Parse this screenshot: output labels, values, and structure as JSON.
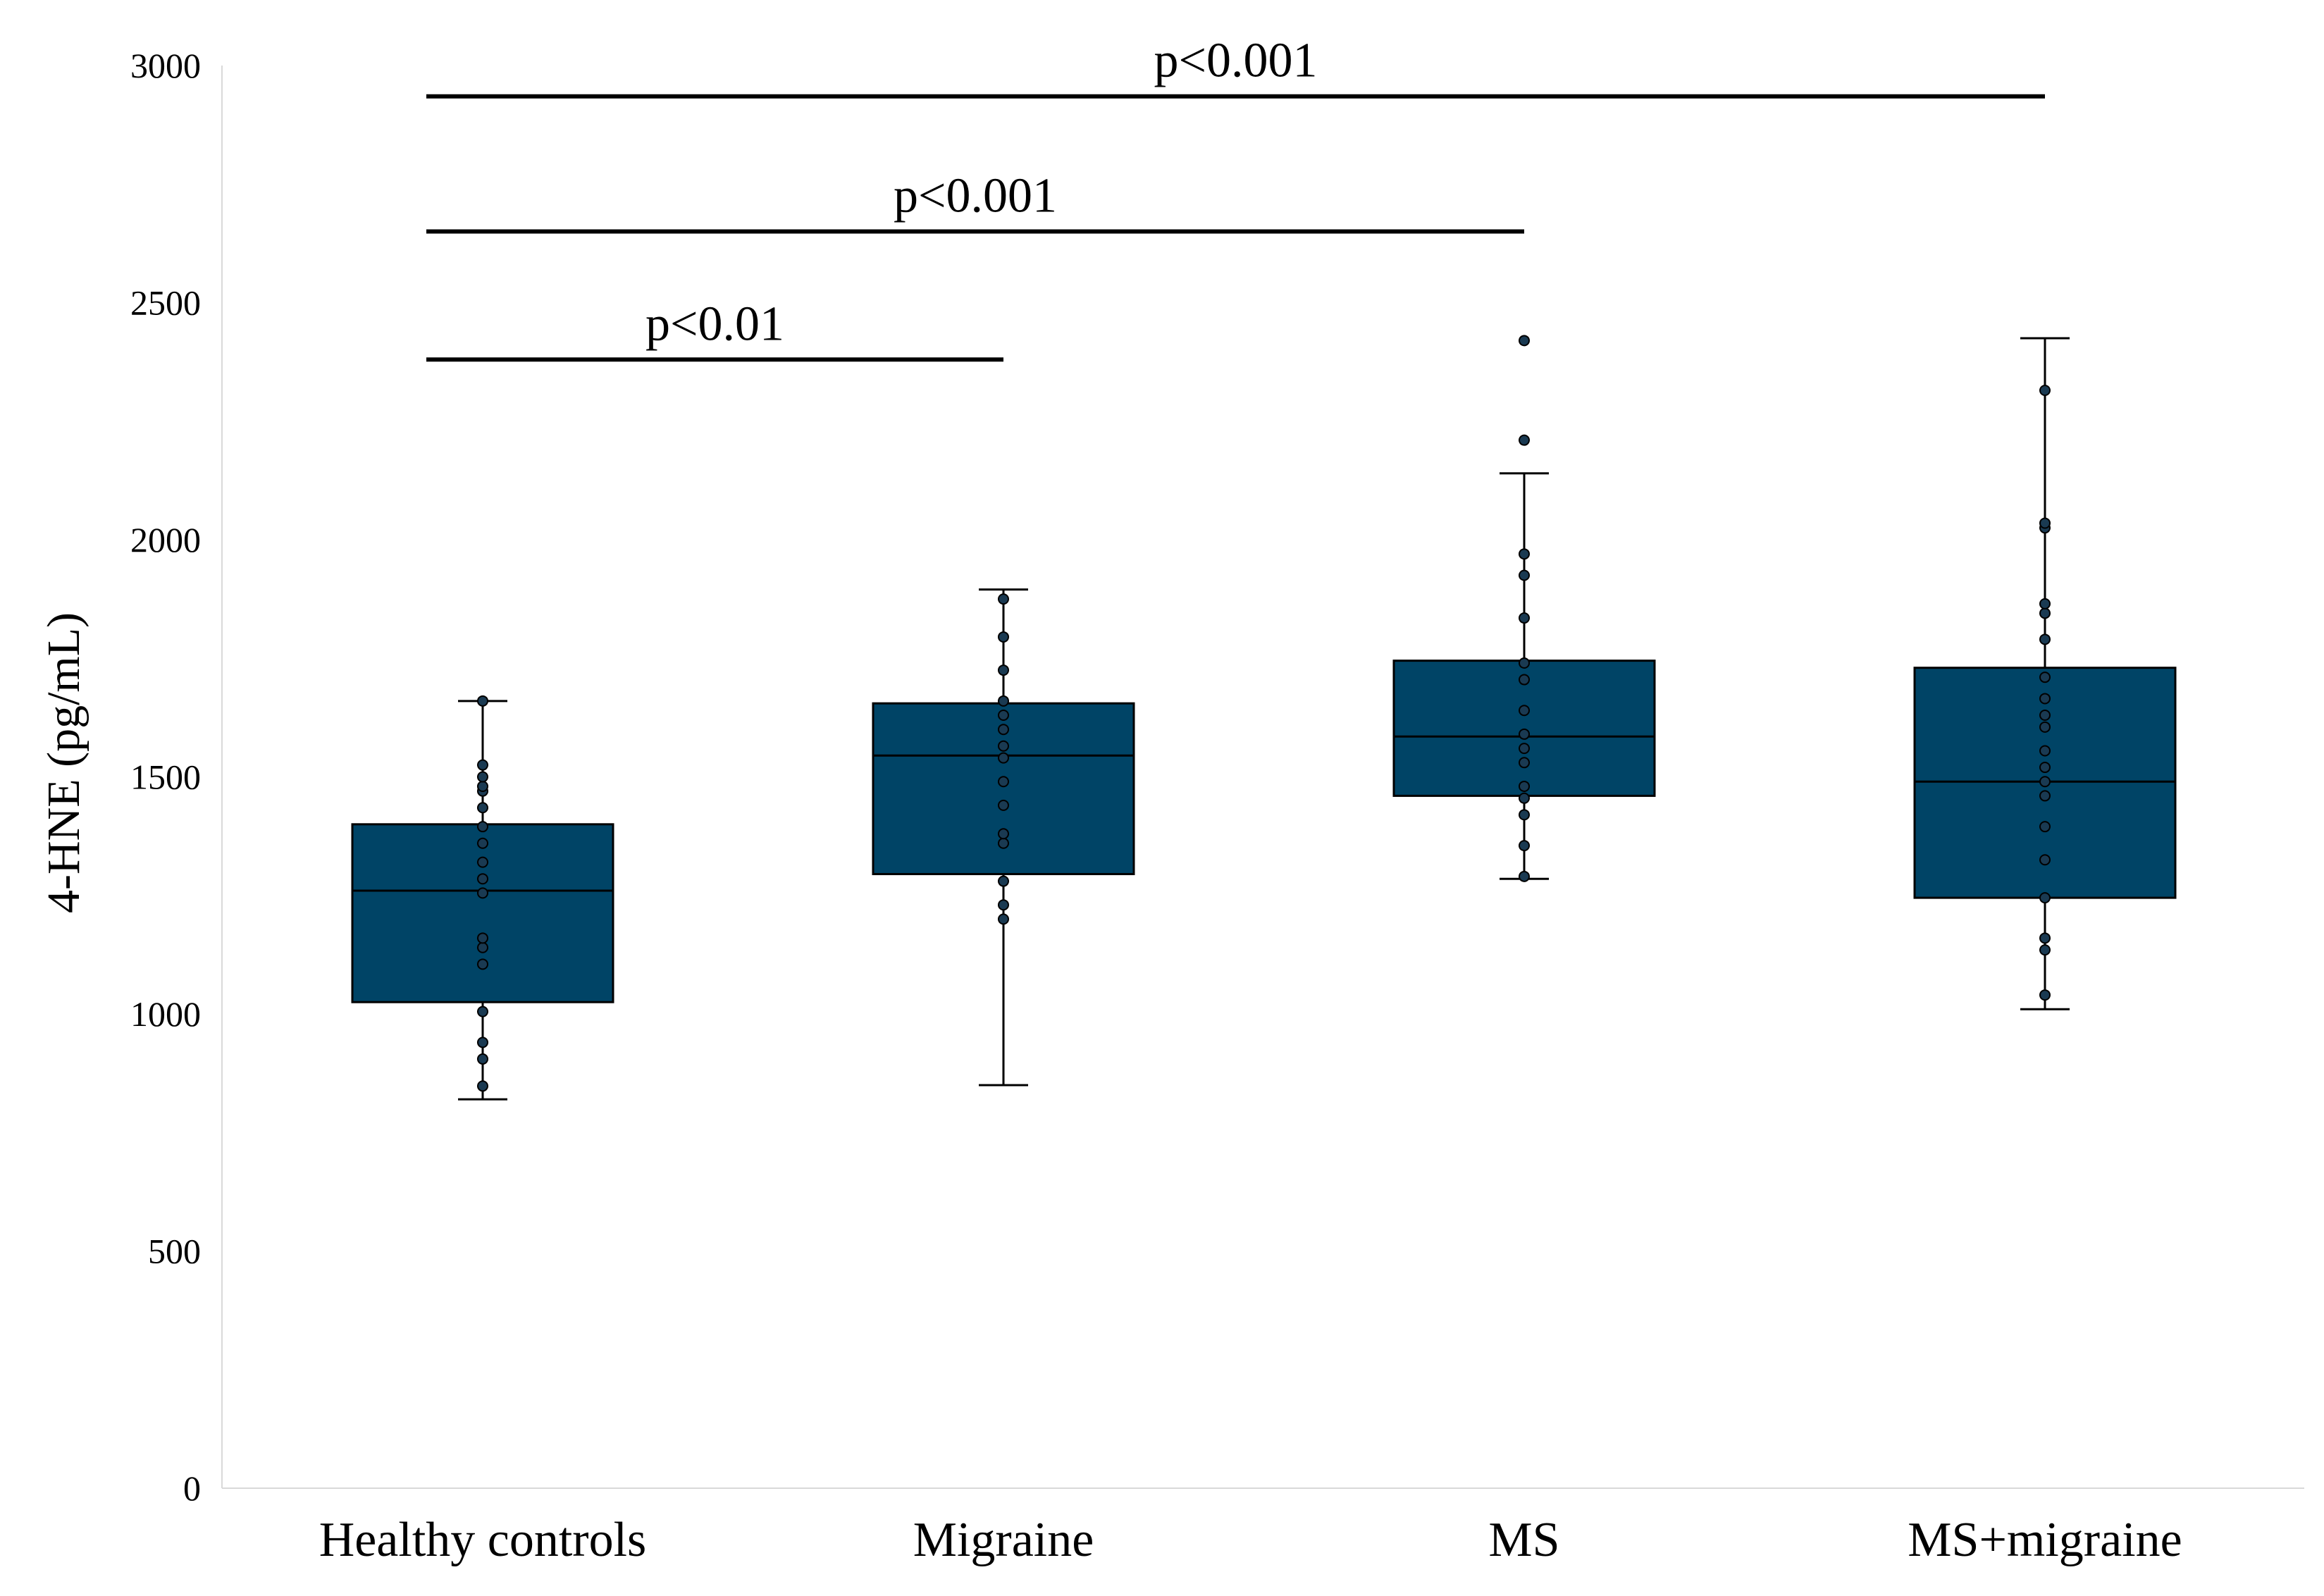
{
  "chart_data": {
    "type": "boxplot",
    "title": "",
    "xlabel": "",
    "ylabel": "4-HNE (pg/mL)",
    "ylim": [
      0,
      3000
    ],
    "yticks": [
      0,
      500,
      1000,
      1500,
      2000,
      2500,
      3000
    ],
    "grid": false,
    "categories": [
      "Healthy controls",
      "Migraine",
      "MS",
      "MS+migraine"
    ],
    "box_color": "#004466",
    "point_color": "#1a3a52",
    "boxes": [
      {
        "name": "Healthy controls",
        "whisker_low": 820,
        "q1": 1025,
        "median": 1260,
        "q3": 1400,
        "whisker_high": 1660,
        "points": [
          848,
          905,
          940,
          1005,
          1105,
          1140,
          1160,
          1255,
          1285,
          1320,
          1360,
          1395,
          1435,
          1470,
          1480,
          1500,
          1525,
          1660
        ]
      },
      {
        "name": "Migraine",
        "whisker_low": 850,
        "q1": 1295,
        "median": 1545,
        "q3": 1655,
        "whisker_high": 1895,
        "points": [
          1200,
          1230,
          1280,
          1360,
          1380,
          1440,
          1490,
          1540,
          1565,
          1600,
          1630,
          1660,
          1725,
          1795,
          1875
        ]
      },
      {
        "name": "MS",
        "whisker_low": 1285,
        "q1": 1460,
        "median": 1585,
        "q3": 1745,
        "whisker_high": 2140,
        "points": [
          1290,
          1355,
          1420,
          1455,
          1480,
          1530,
          1560,
          1590,
          1640,
          1705,
          1740,
          1835,
          1925,
          1970,
          2210,
          2420
        ]
      },
      {
        "name": "MS+migraine",
        "whisker_low": 1010,
        "q1": 1245,
        "median": 1490,
        "q3": 1730,
        "whisker_high": 2425,
        "points": [
          1040,
          1135,
          1160,
          1245,
          1325,
          1395,
          1460,
          1490,
          1520,
          1555,
          1605,
          1630,
          1665,
          1710,
          1790,
          1845,
          1865,
          2025,
          2035,
          2315
        ]
      }
    ],
    "significance": [
      {
        "from": "Healthy controls",
        "to": "Migraine",
        "y": 2380,
        "label": "p<0.01"
      },
      {
        "from": "Healthy controls",
        "to": "MS",
        "y": 2650,
        "label": "p<0.001"
      },
      {
        "from": "Healthy controls",
        "to": "MS+migraine",
        "y": 2935,
        "label": "p<0.001"
      }
    ]
  }
}
